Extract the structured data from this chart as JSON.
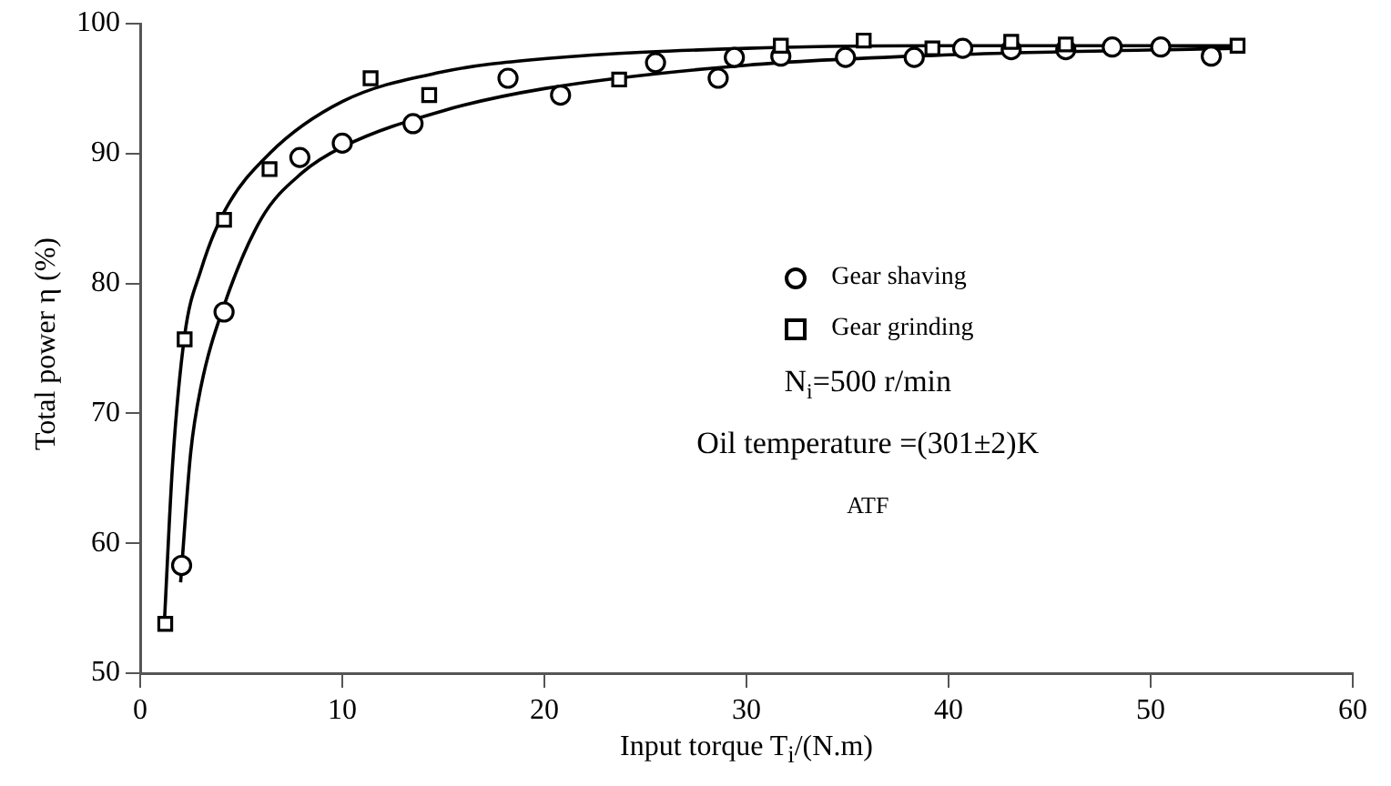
{
  "chart_data": {
    "type": "scatter",
    "xlabel": "Input torque T$_{i}$/(N.m)",
    "ylabel": "Total power η (%)",
    "xlim": [
      0,
      60
    ],
    "xticks": [
      0,
      10,
      20,
      30,
      40,
      50,
      60
    ],
    "ylim": [
      50,
      100
    ],
    "yticks": [
      50,
      60,
      70,
      80,
      90,
      100
    ],
    "grid": false,
    "legend": "right",
    "series": [
      {
        "name": "Gear shaving",
        "color": "#000000",
        "marker": "circle",
        "x": [
          2.05,
          4.15,
          7.9,
          10.0,
          13.5,
          18.2,
          20.8,
          25.5,
          28.6,
          29.4,
          31.7,
          34.9,
          38.3,
          40.7,
          43.1,
          45.8,
          48.1,
          50.5,
          53.0
        ],
        "values": [
          58.3,
          77.8,
          89.7,
          90.8,
          92.3,
          95.8,
          94.5,
          97.0,
          95.8,
          97.4,
          97.5,
          97.4,
          97.4,
          98.1,
          98.0,
          98.0,
          98.2,
          98.2,
          97.5
        ]
      },
      {
        "name": "Gear grinding",
        "color": "#000000",
        "marker": "square",
        "x": [
          1.24,
          2.2,
          4.15,
          6.4,
          11.4,
          14.3,
          23.7,
          31.7,
          35.8,
          39.2,
          43.1,
          45.8,
          54.3
        ],
        "values": [
          53.8,
          75.7,
          84.9,
          88.8,
          95.8,
          94.5,
          95.7,
          98.3,
          98.7,
          98.1,
          98.6,
          98.4,
          98.3
        ]
      },
      {
        "type": "line",
        "color": "#000000",
        "marker": "none",
        "line_style": "solid",
        "x": [
          2.0,
          2.5,
          3.0,
          4.15,
          6,
          8,
          10,
          15,
          20,
          30,
          40,
          54
        ],
        "values": [
          57,
          67,
          72,
          78.3,
          85,
          88.5,
          90.5,
          93.3,
          95,
          96.8,
          97.6,
          98.1
        ]
      },
      {
        "type": "line",
        "color": "#000000",
        "marker": "none",
        "line_style": "solid",
        "x": [
          1.2,
          1.6,
          2.2,
          3,
          4.15,
          6.4,
          10,
          15,
          20,
          30,
          40,
          54
        ],
        "values": [
          54,
          66,
          76,
          81,
          85.5,
          90,
          94,
          96.3,
          97.3,
          98.1,
          98.3,
          98.3
        ]
      }
    ],
    "annotations": [
      "N$_{i}$=500 r/min",
      "Oil temperature =(301±2)K",
      "ATF"
    ]
  }
}
